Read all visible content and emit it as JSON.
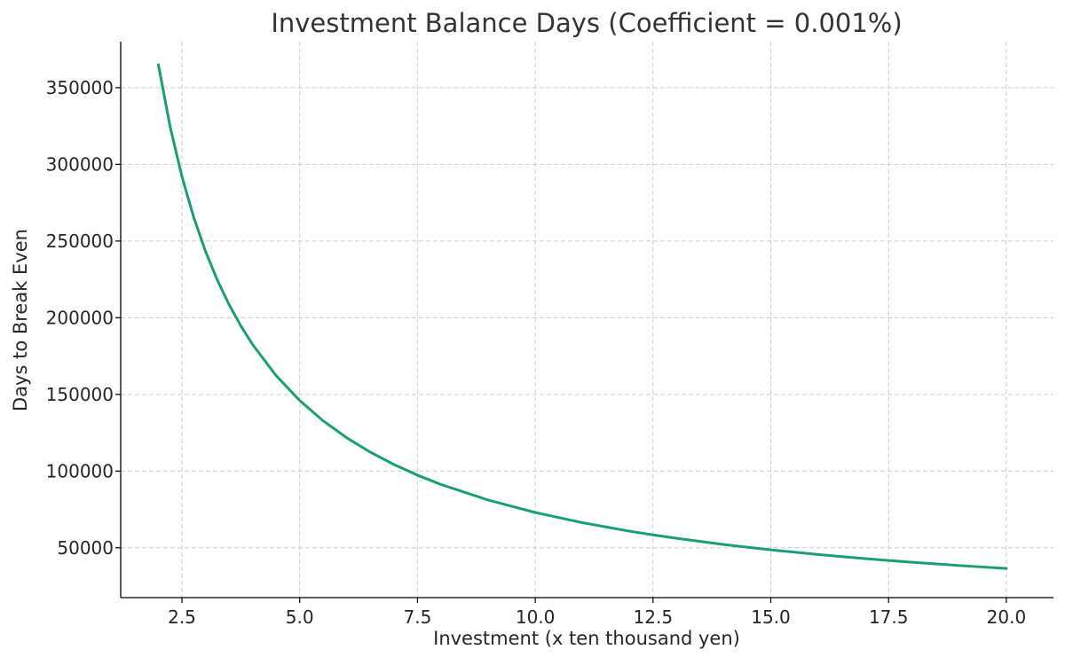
{
  "chart_data": {
    "type": "line",
    "title": "Investment Balance Days (Coefficient = 0.001%)",
    "xlabel": "Investment (x ten thousand yen)",
    "ylabel": "Days to Break Even",
    "xlim": [
      1.2,
      21.0
    ],
    "ylim": [
      17500,
      380000
    ],
    "xticks": [
      2.5,
      5.0,
      7.5,
      10.0,
      12.5,
      15.0,
      17.5,
      20.0
    ],
    "xtick_labels": [
      "2.5",
      "5.0",
      "7.5",
      "10.0",
      "12.5",
      "15.0",
      "17.5",
      "20.0"
    ],
    "yticks": [
      50000,
      100000,
      150000,
      200000,
      250000,
      300000,
      350000
    ],
    "ytick_labels": [
      "50000",
      "100000",
      "150000",
      "200000",
      "250000",
      "300000",
      "350000"
    ],
    "grid": true,
    "legend": "none",
    "series": [
      {
        "color": "#1a9e77",
        "x": [
          2.0,
          2.25,
          2.5,
          2.75,
          3.0,
          3.25,
          3.5,
          3.75,
          4.0,
          4.5,
          5.0,
          5.5,
          6.0,
          6.5,
          7.0,
          7.5,
          8.0,
          9.0,
          10.0,
          11.0,
          12.0,
          12.5,
          13.0,
          14.0,
          15.0,
          16.0,
          17.0,
          17.5,
          18.0,
          19.0,
          20.0
        ],
        "y": [
          365000,
          324444,
          292000,
          265455,
          243333,
          224615,
          208571,
          194667,
          182500,
          162222,
          146000,
          132727,
          121667,
          112308,
          104286,
          97333,
          91250,
          81111,
          73000,
          66364,
          60833,
          58400,
          56154,
          52143,
          48667,
          45625,
          42941,
          41714,
          40556,
          38421,
          36500
        ]
      }
    ]
  }
}
